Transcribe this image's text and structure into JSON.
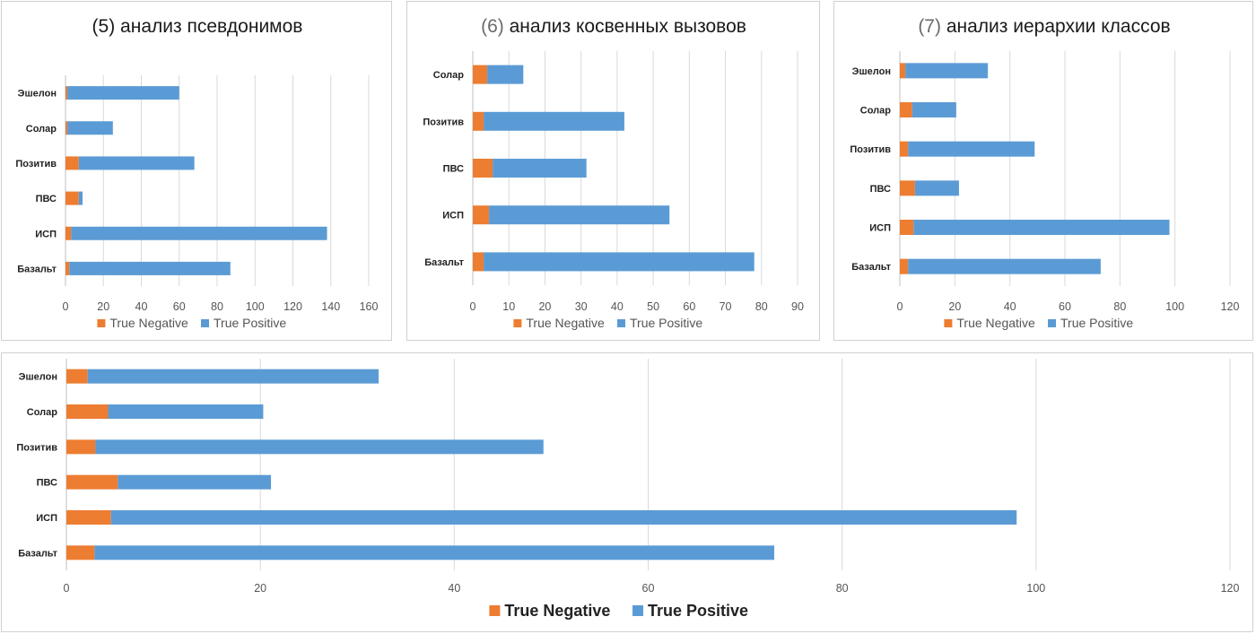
{
  "colors": {
    "true_negative": "#ED7D31",
    "true_positive": "#5B9BD5"
  },
  "legend": {
    "tn_label": "True Negative",
    "tp_label": "True Positive"
  },
  "chart_data": [
    {
      "type": "bar",
      "orientation": "horizontal",
      "stacked": true,
      "title_number": "(5)",
      "title": "анализ псевдонимов",
      "categories": [
        "Эшелон",
        "Солар",
        "Позитив",
        "ПВС",
        "ИСП",
        "Базальт"
      ],
      "series": [
        {
          "name": "True Negative",
          "values": [
            1,
            1,
            7,
            7,
            3,
            2
          ]
        },
        {
          "name": "True Positive",
          "values": [
            59,
            24,
            61,
            2,
            135,
            85
          ]
        }
      ],
      "xlim": [
        0,
        160
      ],
      "xticks": [
        0,
        20,
        40,
        60,
        80,
        100,
        120,
        140,
        160
      ],
      "legend_position": "bottom",
      "grid": true
    },
    {
      "type": "bar",
      "orientation": "horizontal",
      "stacked": true,
      "title_number": "(6)",
      "title": "анализ косвенных вызовов",
      "categories": [
        "Солар",
        "Позитив",
        "ПВС",
        "ИСП",
        "Базальт"
      ],
      "series": [
        {
          "name": "True Negative",
          "values": [
            4,
            3,
            5.5,
            4.5,
            3
          ]
        },
        {
          "name": "True Positive",
          "values": [
            10,
            39,
            26,
            50,
            75
          ]
        }
      ],
      "xlim": [
        0,
        90
      ],
      "xticks": [
        0,
        10,
        20,
        30,
        40,
        50,
        60,
        70,
        80,
        90
      ],
      "legend_position": "bottom",
      "grid": true
    },
    {
      "type": "bar",
      "orientation": "horizontal",
      "stacked": true,
      "title_number": "(7)",
      "title": "анализ иерархии классов",
      "categories": [
        "Эшелон",
        "Солар",
        "Позитив",
        "ПВС",
        "ИСП",
        "Базальт"
      ],
      "series": [
        {
          "name": "True Negative",
          "values": [
            2,
            4.5,
            3,
            5.5,
            5,
            3
          ]
        },
        {
          "name": "True Positive",
          "values": [
            30,
            16,
            46,
            16,
            93,
            70
          ]
        }
      ],
      "xlim": [
        0,
        120
      ],
      "xticks": [
        0,
        20,
        40,
        60,
        80,
        100,
        120
      ],
      "legend_position": "bottom",
      "grid": true
    },
    {
      "type": "bar",
      "orientation": "horizontal",
      "stacked": true,
      "title": "",
      "categories": [
        "Эшелон",
        "Солар",
        "Позитив",
        "ПВС",
        "ИСП",
        "Базальт"
      ],
      "series": [
        {
          "name": "True Negative",
          "values": [
            2.2,
            4.3,
            3,
            5.3,
            4.6,
            2.9
          ]
        },
        {
          "name": "True Positive",
          "values": [
            30,
            16,
            46.2,
            15.8,
            93.4,
            70.1
          ]
        }
      ],
      "xlim": [
        0,
        120
      ],
      "xticks": [
        0,
        20,
        40,
        60,
        80,
        100,
        120
      ],
      "legend_position": "bottom",
      "grid": true
    }
  ]
}
